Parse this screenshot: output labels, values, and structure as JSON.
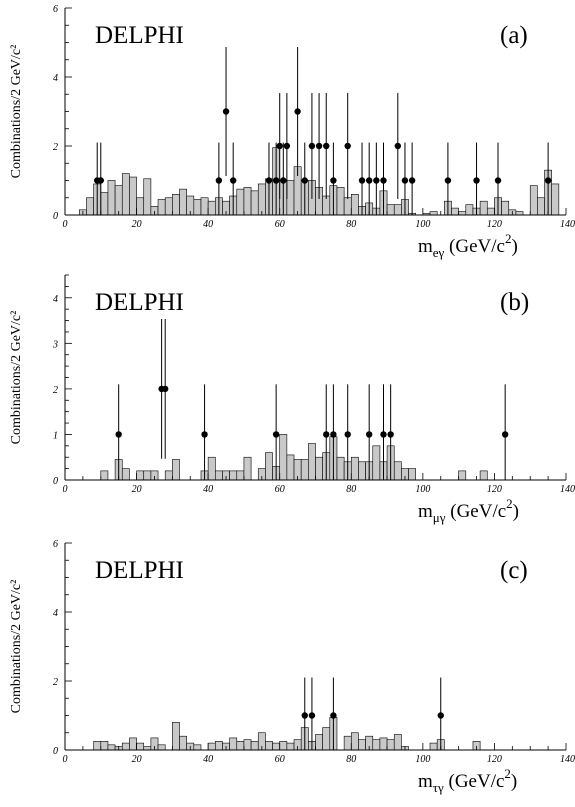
{
  "colors": {
    "background": "#ffffff",
    "hist_fill": "#c9c9c9",
    "ink": "#000000"
  },
  "chart_data": [
    {
      "type": "bar",
      "panel": "(a)",
      "experiment": "DELPHI",
      "xlabel": {
        "main": "m",
        "sub": "eγ",
        "unit": " (GeV/c",
        "sup": "2",
        "close": ")"
      },
      "ylabel": "Combinations/2 GeV/c²",
      "xlim": [
        0,
        140
      ],
      "ylim": [
        0,
        6
      ],
      "x_ticks": [
        0,
        20,
        40,
        60,
        80,
        100,
        120,
        140
      ],
      "y_ticks": [
        0,
        2,
        4,
        6
      ],
      "bin_width": 2,
      "simulation": {
        "x": [
          4,
          6,
          8,
          10,
          12,
          14,
          16,
          18,
          20,
          22,
          24,
          26,
          28,
          30,
          32,
          34,
          36,
          38,
          40,
          42,
          44,
          46,
          48,
          50,
          52,
          54,
          56,
          58,
          60,
          62,
          64,
          66,
          68,
          70,
          72,
          74,
          76,
          78,
          80,
          82,
          84,
          86,
          88,
          90,
          92,
          94,
          96,
          98,
          100,
          102,
          104,
          106,
          108,
          110,
          112,
          114,
          116,
          118,
          120,
          122,
          124,
          126,
          128,
          130,
          132,
          134,
          136
        ],
        "y": [
          0.15,
          0.5,
          0.9,
          0.65,
          1.0,
          0.85,
          1.2,
          1.1,
          0.5,
          1.05,
          0.25,
          0.45,
          0.5,
          0.6,
          0.75,
          0.55,
          0.45,
          0.5,
          0.4,
          0.5,
          0.4,
          0.55,
          0.75,
          0.8,
          0.7,
          0.9,
          1.05,
          1.95,
          1.0,
          1.0,
          1.4,
          1.0,
          1.0,
          0.8,
          0.55,
          0.85,
          0.8,
          0.5,
          0.6,
          0.25,
          0.35,
          0.2,
          0.7,
          0.3,
          0.3,
          0.45,
          0.05,
          0.0,
          0.05,
          0.1,
          0.0,
          0.4,
          0.2,
          0.1,
          0.3,
          0.2,
          0.4,
          0.2,
          0.5,
          0.4,
          0.15,
          0.1,
          0.0,
          0.85,
          0.5,
          1.3,
          0.9
        ]
      },
      "data": {
        "x": [
          9,
          10,
          45,
          47,
          43,
          57,
          59,
          60,
          61,
          62,
          65,
          67,
          69,
          71,
          73,
          75,
          79,
          83,
          85,
          87,
          89,
          93,
          95,
          97,
          107,
          115,
          121,
          135
        ],
        "y": [
          1,
          1,
          3,
          1,
          1,
          1,
          1,
          2,
          1,
          2,
          3,
          1,
          2,
          2,
          2,
          1,
          2,
          1,
          1,
          1,
          1,
          2,
          1,
          1,
          1,
          1,
          1,
          1
        ]
      }
    },
    {
      "type": "bar",
      "panel": "(b)",
      "experiment": "DELPHI",
      "xlabel": {
        "main": "m",
        "sub": "μγ",
        "unit": " (GeV/c",
        "sup": "2",
        "close": ")"
      },
      "ylabel": "Combinations/2 GeV/c²",
      "xlim": [
        0,
        140
      ],
      "ylim": [
        0,
        4.5
      ],
      "x_ticks": [
        0,
        20,
        40,
        60,
        80,
        100,
        120,
        140
      ],
      "y_ticks": [
        0,
        1,
        2,
        3,
        4
      ],
      "bin_width": 2,
      "simulation": {
        "x": [
          10,
          14,
          16,
          20,
          22,
          24,
          28,
          30,
          38,
          40,
          42,
          44,
          46,
          48,
          50,
          54,
          56,
          58,
          60,
          62,
          64,
          66,
          68,
          70,
          72,
          74,
          76,
          78,
          80,
          82,
          84,
          86,
          88,
          90,
          92,
          94,
          96,
          110,
          116
        ],
        "y": [
          0.2,
          0.45,
          0.25,
          0.2,
          0.2,
          0.2,
          0.2,
          0.45,
          0.2,
          0.5,
          0.2,
          0.2,
          0.2,
          0.2,
          0.5,
          0.25,
          0.6,
          0.3,
          1.0,
          0.55,
          0.45,
          0.45,
          0.8,
          0.5,
          0.6,
          0.95,
          0.5,
          0.4,
          0.5,
          0.4,
          0.4,
          0.75,
          0.4,
          0.75,
          0.4,
          0.25,
          0.25,
          0.2,
          0.2
        ]
      },
      "data": {
        "x": [
          15,
          27,
          28,
          39,
          59,
          73,
          75,
          79,
          85,
          89,
          91,
          123
        ],
        "y": [
          1,
          2,
          2,
          1,
          1,
          1,
          1,
          1,
          1,
          1,
          1,
          1
        ]
      }
    },
    {
      "type": "bar",
      "panel": "(c)",
      "experiment": "DELPHI",
      "xlabel": {
        "main": "m",
        "sub": "τγ",
        "unit": " (GeV/c",
        "sup": "2",
        "close": ")"
      },
      "ylabel": "Combinations/2 GeV/c²",
      "xlim": [
        0,
        140
      ],
      "ylim": [
        0,
        6
      ],
      "x_ticks": [
        0,
        20,
        40,
        60,
        80,
        100,
        120,
        140
      ],
      "y_ticks": [
        0,
        2,
        4,
        6
      ],
      "bin_width": 2,
      "simulation": {
        "x": [
          8,
          10,
          12,
          14,
          16,
          18,
          20,
          22,
          24,
          26,
          28,
          30,
          32,
          34,
          36,
          40,
          42,
          44,
          46,
          48,
          50,
          52,
          54,
          56,
          58,
          60,
          62,
          64,
          66,
          68,
          70,
          72,
          74,
          76,
          78,
          80,
          82,
          84,
          86,
          88,
          90,
          92,
          94,
          102,
          104,
          114
        ],
        "y": [
          0.25,
          0.25,
          0.15,
          0.1,
          0.2,
          0.35,
          0.2,
          0.1,
          0.35,
          0.15,
          0.0,
          0.8,
          0.4,
          0.2,
          0.15,
          0.2,
          0.25,
          0.2,
          0.35,
          0.25,
          0.3,
          0.25,
          0.5,
          0.25,
          0.2,
          0.25,
          0.2,
          0.3,
          0.65,
          0.25,
          0.45,
          0.65,
          0.95,
          0.0,
          0.4,
          0.5,
          0.3,
          0.4,
          0.3,
          0.35,
          0.3,
          0.45,
          0.1,
          0.2,
          0.3,
          0.25
        ]
      },
      "data": {
        "x": [
          67,
          69,
          75,
          105
        ],
        "y": [
          1,
          1,
          1,
          1
        ]
      }
    }
  ]
}
